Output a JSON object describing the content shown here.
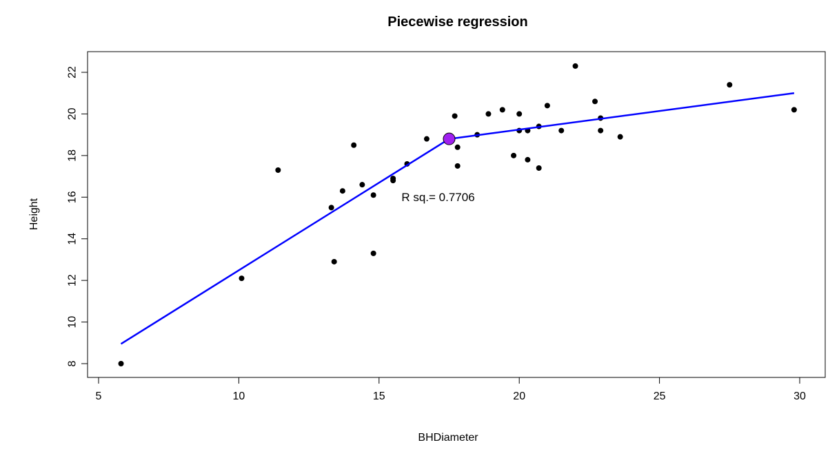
{
  "chart_data": {
    "type": "scatter",
    "title": "Piecewise regression",
    "xlabel": "BHDiameter",
    "ylabel": "Height",
    "xlim": [
      5,
      30
    ],
    "ylim": [
      8,
      22
    ],
    "x_ticks": [
      5,
      10,
      15,
      20,
      25,
      30
    ],
    "y_ticks": [
      8,
      10,
      12,
      14,
      16,
      18,
      20,
      22
    ],
    "grid": false,
    "colors": {
      "points": "#000000",
      "fit_line": "#0000ff",
      "breakpoint_fill": "#a020f0",
      "breakpoint_stroke": "#000000"
    },
    "points": [
      {
        "x": 5.8,
        "y": 8.0
      },
      {
        "x": 10.1,
        "y": 12.1
      },
      {
        "x": 11.4,
        "y": 17.3
      },
      {
        "x": 13.3,
        "y": 15.5
      },
      {
        "x": 13.4,
        "y": 12.9
      },
      {
        "x": 13.7,
        "y": 16.3
      },
      {
        "x": 14.1,
        "y": 18.5
      },
      {
        "x": 14.4,
        "y": 16.6
      },
      {
        "x": 14.8,
        "y": 16.1
      },
      {
        "x": 14.8,
        "y": 13.3
      },
      {
        "x": 15.5,
        "y": 16.9
      },
      {
        "x": 15.5,
        "y": 16.8
      },
      {
        "x": 16.0,
        "y": 17.6
      },
      {
        "x": 16.7,
        "y": 18.8
      },
      {
        "x": 17.7,
        "y": 19.9
      },
      {
        "x": 17.8,
        "y": 18.4
      },
      {
        "x": 17.8,
        "y": 17.5
      },
      {
        "x": 18.5,
        "y": 19.0
      },
      {
        "x": 18.9,
        "y": 20.0
      },
      {
        "x": 19.4,
        "y": 20.2
      },
      {
        "x": 19.8,
        "y": 18.0
      },
      {
        "x": 20.0,
        "y": 20.0
      },
      {
        "x": 20.0,
        "y": 19.2
      },
      {
        "x": 20.3,
        "y": 19.2
      },
      {
        "x": 20.3,
        "y": 17.8
      },
      {
        "x": 20.7,
        "y": 19.4
      },
      {
        "x": 20.7,
        "y": 17.4
      },
      {
        "x": 21.0,
        "y": 20.4
      },
      {
        "x": 21.5,
        "y": 19.2
      },
      {
        "x": 22.0,
        "y": 22.3
      },
      {
        "x": 22.7,
        "y": 20.6
      },
      {
        "x": 22.9,
        "y": 19.8
      },
      {
        "x": 22.9,
        "y": 19.2
      },
      {
        "x": 23.6,
        "y": 18.9
      },
      {
        "x": 27.5,
        "y": 21.4
      },
      {
        "x": 29.8,
        "y": 20.2
      }
    ],
    "fit_line": [
      {
        "x": 5.8,
        "y": 8.95
      },
      {
        "x": 17.5,
        "y": 18.8
      },
      {
        "x": 29.8,
        "y": 21.0
      }
    ],
    "breakpoint": {
      "x": 17.5,
      "y": 18.8
    },
    "annotation": {
      "text": "R sq.= 0.7706",
      "x": 15.8,
      "y": 16.0
    }
  }
}
